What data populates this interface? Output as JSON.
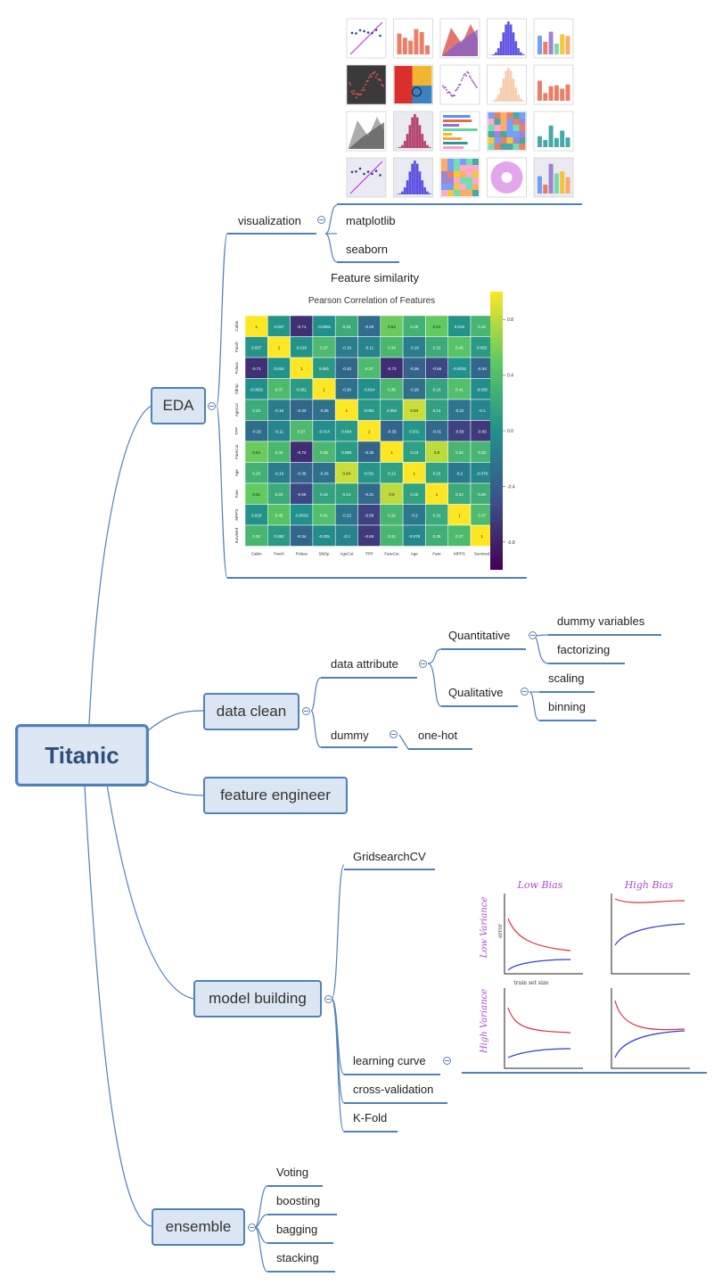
{
  "root": {
    "label": "Titanic"
  },
  "branches": {
    "eda": {
      "label": "EDA",
      "visualization": {
        "label": "visualization",
        "children": [
          "matplotlib",
          "seaborn"
        ]
      },
      "feature_similarity": {
        "label": "Feature similarity",
        "heatmap": {
          "title": "Pearson Correlation of Features",
          "labels": [
            "Cabin",
            "Parch",
            "Pclass",
            "SibSp",
            "AgeCut",
            "TPP",
            "FareCut",
            "Age",
            "Fare",
            "MPPS",
            "Survived"
          ],
          "values": [
            [
              1,
              0.037,
              -0.71,
              -0.0091,
              0.23,
              -0.29,
              0.54,
              0.28,
              0.51,
              0.019,
              0.32
            ],
            [
              0.037,
              1,
              0.018,
              0.37,
              -0.16,
              -0.11,
              0.34,
              -0.16,
              0.22,
              0.45,
              0.082
            ],
            [
              -0.71,
              0.018,
              1,
              0.081,
              -0.33,
              0.37,
              -0.72,
              -0.36,
              -0.56,
              -0.0032,
              -0.34
            ],
            [
              -0.0091,
              0.37,
              0.081,
              1,
              -0.26,
              -0.014,
              0.35,
              -0.26,
              0.16,
              0.41,
              -0.035
            ],
            [
              0.23,
              -0.16,
              -0.33,
              -0.26,
              1,
              0.064,
              0.092,
              0.84,
              0.14,
              -0.22,
              -0.1
            ],
            [
              -0.29,
              -0.11,
              0.37,
              -0.014,
              0.064,
              1,
              -0.35,
              0.031,
              -0.31,
              -0.59,
              -0.65
            ],
            [
              0.54,
              0.34,
              -0.72,
              0.35,
              0.092,
              -0.35,
              1,
              0.13,
              0.8,
              0.32,
              0.32
            ],
            [
              0.28,
              -0.16,
              -0.36,
              -0.26,
              0.84,
              0.031,
              0.13,
              1,
              0.15,
              -0.2,
              -0.078
            ],
            [
              0.51,
              0.22,
              -0.56,
              0.16,
              0.14,
              -0.31,
              0.8,
              0.15,
              1,
              0.22,
              0.26
            ],
            [
              0.019,
              0.45,
              -0.0032,
              0.41,
              -0.22,
              -0.59,
              0.32,
              -0.2,
              0.22,
              1,
              0.37
            ],
            [
              0.32,
              0.082,
              -0.34,
              -0.035,
              -0.1,
              -0.65,
              0.32,
              -0.078,
              0.26,
              0.37,
              1
            ]
          ],
          "colorbar_ticks": [
            "0.8",
            "0.4",
            "0.0",
            "-0.4",
            "-0.8"
          ]
        }
      }
    },
    "data_clean": {
      "label": "data clean",
      "data_attribute": "data attribute",
      "quantitative": {
        "label": "Quantitative",
        "children": [
          "dummy variables",
          "factorizing"
        ]
      },
      "qualitative": {
        "label": "Qualitative",
        "children": [
          "scaling",
          "binning"
        ]
      },
      "dummy": {
        "label": "dummy",
        "child": "one-hot"
      }
    },
    "feature_engineer": {
      "label": "feature engineer"
    },
    "model_building": {
      "label": "model building",
      "children": [
        "GridsearchCV",
        "learning curve",
        "cross-validation",
        "K-Fold"
      ],
      "learning_curve_sketch": {
        "col_titles": [
          "Low Bias",
          "High Bias"
        ],
        "row_titles": [
          "Low Variance",
          "High Variance"
        ],
        "y_axis": "error",
        "x_axis": "train set size"
      }
    },
    "ensemble": {
      "label": "ensemble",
      "children": [
        "Voting",
        "boosting",
        "bagging",
        "stacking"
      ]
    }
  },
  "colors": {
    "node_fill": "#dce6f2",
    "node_border": "#4f81bd",
    "line": "#4f81bd"
  }
}
